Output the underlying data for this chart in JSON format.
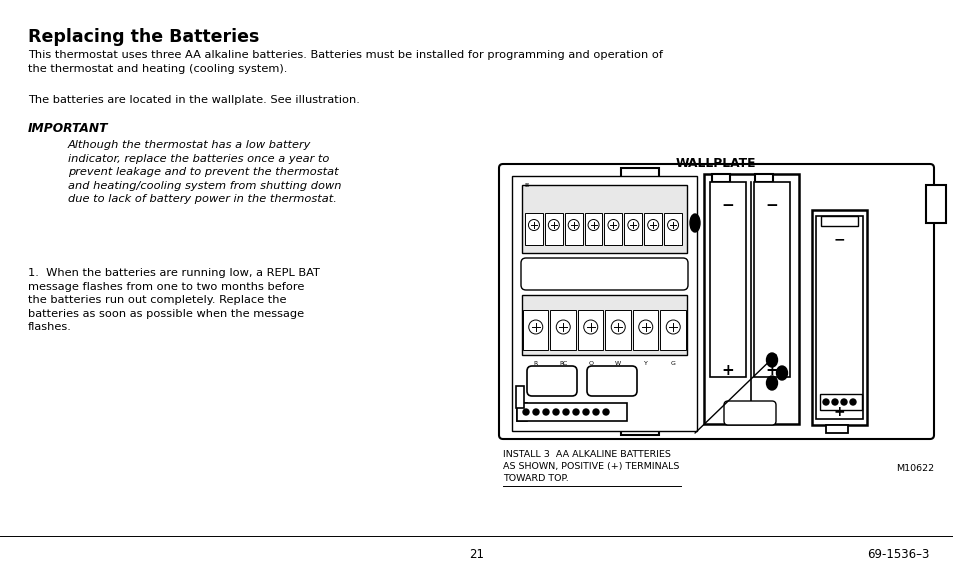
{
  "bg_color": "#ffffff",
  "title": "Replacing the Batteries",
  "para1": "This thermostat uses three AA alkaline batteries. Batteries must be installed for programming and operation of\nthe thermostat and heating (cooling system).",
  "para2": "The batteries are located in the wallplate. See illustration.",
  "important_label": "IMPORTANT",
  "important_italic": "Although the thermostat has a low battery\nindicator, replace the batteries once a year to\nprevent leakage and to prevent the thermostat\nand heating/cooling system from shutting down\ndue to lack of battery power in the thermostat.",
  "step1_label": "1.",
  "step1_text": "When the batteries are running low, a REPL BAT\nmessage flashes from one to two months before\nthe batteries run out completely. Replace the\nbatteries as soon as possible when the message\nflashes.",
  "wallplate_label": "WALLPLATE",
  "caption_line1": "INSTALL 3  AA ALKALINE BATTERIES",
  "caption_line2": "AS SHOWN, POSITIVE (+) TERMINALS",
  "caption_line3": "TOWARD TOP.",
  "model_number": "M10622",
  "page_number": "21",
  "doc_number": "69-1536–3"
}
